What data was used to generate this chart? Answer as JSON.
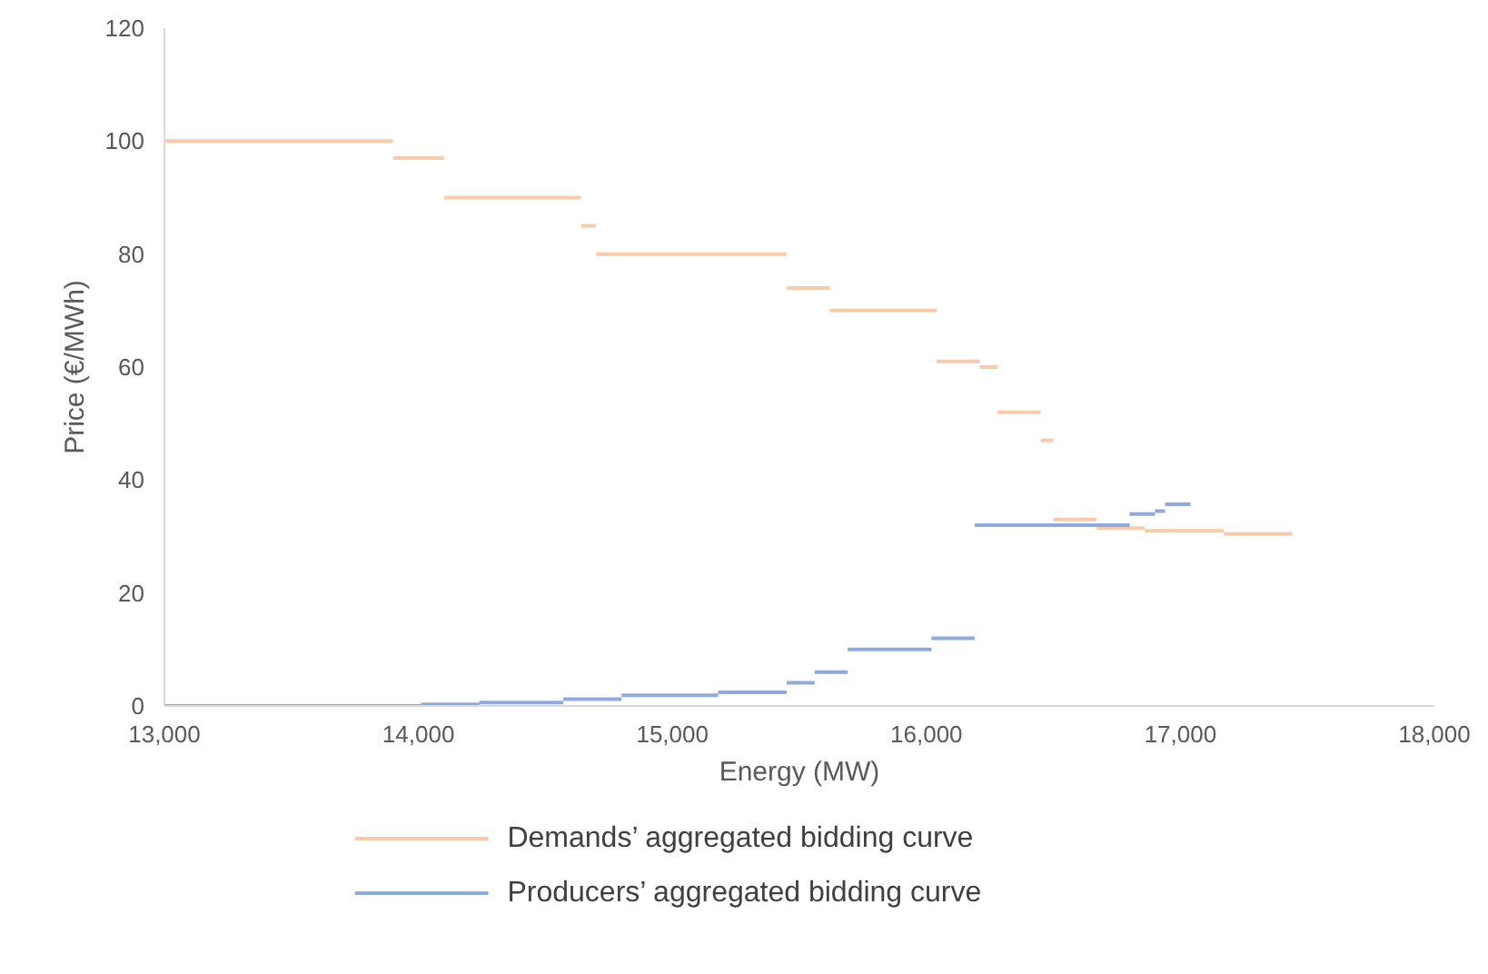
{
  "chart_data": {
    "type": "line",
    "xlabel": "Energy (MW)",
    "ylabel": "Price (€/MWh)",
    "xlim": [
      13000,
      18000
    ],
    "xticks": [
      {
        "value": 13000,
        "label": "13,000"
      },
      {
        "value": 14000,
        "label": "14,000"
      },
      {
        "value": 15000,
        "label": "15,000"
      },
      {
        "value": 16000,
        "label": "16,000"
      },
      {
        "value": 17000,
        "label": "17,000"
      },
      {
        "value": 18000,
        "label": "18,000"
      }
    ],
    "ylim": [
      0,
      120
    ],
    "yticks": [
      0,
      20,
      40,
      60,
      80,
      100,
      120
    ],
    "grid": false,
    "legend": "bottom",
    "marker": "none",
    "line_style": "solid",
    "series": [
      {
        "name": "Demands’ aggregated bidding curve",
        "color": "#f8cbad",
        "x": [
          13000,
          13900,
          null,
          13900,
          14100,
          null,
          14100,
          14640,
          null,
          14640,
          14700,
          null,
          14700,
          15450,
          null,
          15450,
          15620,
          null,
          15620,
          16040,
          null,
          16040,
          16210,
          null,
          16210,
          16280,
          null,
          16280,
          16450,
          null,
          16450,
          16500,
          null,
          16500,
          16670,
          null,
          16670,
          16860,
          null,
          16860,
          17170,
          null,
          17170,
          17440
        ],
        "values": [
          100,
          100,
          null,
          97,
          97,
          null,
          90,
          90,
          null,
          85,
          85,
          null,
          80,
          80,
          null,
          74,
          74,
          null,
          70,
          70,
          null,
          61,
          61,
          null,
          60,
          60,
          null,
          52,
          52,
          null,
          47,
          47,
          null,
          33,
          33,
          null,
          31.5,
          31.5,
          null,
          31,
          31,
          null,
          30.5,
          30.5
        ]
      },
      {
        "name": "Producers’ aggregated bidding curve",
        "color": "#8faadc",
        "x": [
          13000,
          14010,
          null,
          14010,
          14240,
          null,
          14240,
          14570,
          null,
          14570,
          14800,
          null,
          14800,
          15180,
          null,
          15180,
          15450,
          null,
          15450,
          15560,
          null,
          15560,
          15690,
          null,
          15690,
          16020,
          null,
          16020,
          16190,
          null,
          16190,
          16800,
          null,
          16800,
          16900,
          null,
          16900,
          16940,
          null,
          16940,
          17040
        ],
        "values": [
          0,
          0,
          null,
          0.3,
          0.3,
          null,
          0.6,
          0.6,
          null,
          1.2,
          1.2,
          null,
          1.9,
          1.9,
          null,
          2.4,
          2.4,
          null,
          4.1,
          4.1,
          null,
          6,
          6,
          null,
          10,
          10,
          null,
          12,
          12,
          null,
          32,
          32,
          null,
          34,
          34,
          null,
          34.5,
          34.5,
          null,
          35.7,
          35.7
        ]
      }
    ]
  }
}
